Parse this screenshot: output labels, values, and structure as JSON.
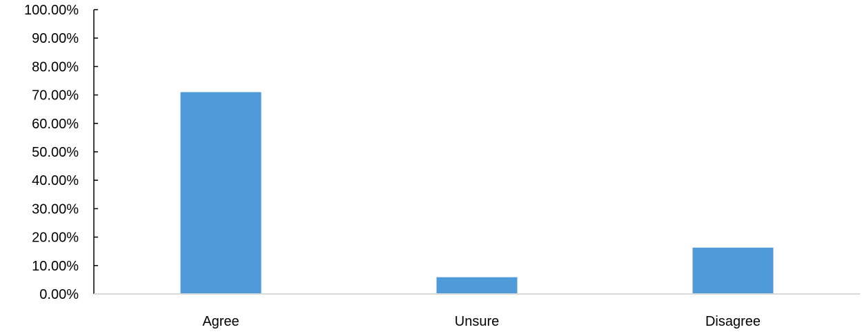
{
  "chart_data": {
    "type": "bar",
    "categories": [
      "Agree",
      "Unsure",
      "Disagree"
    ],
    "values": [
      71.0,
      5.9,
      16.3
    ],
    "ylim": [
      0,
      100
    ],
    "y_ticks": [
      0,
      10,
      20,
      30,
      40,
      50,
      60,
      70,
      80,
      90,
      100
    ],
    "y_tick_labels": [
      "0.00%",
      "10.00%",
      "20.00%",
      "30.00%",
      "40.00%",
      "50.00%",
      "60.00%",
      "70.00%",
      "80.00%",
      "90.00%",
      "100.00%"
    ],
    "title": "",
    "xlabel": "",
    "ylabel": "",
    "grid": false,
    "legend": "none",
    "colors": {
      "bar": "#4f9ad8",
      "axis": "#000000",
      "baseline": "#d9d9d9",
      "text": "#000000"
    }
  }
}
